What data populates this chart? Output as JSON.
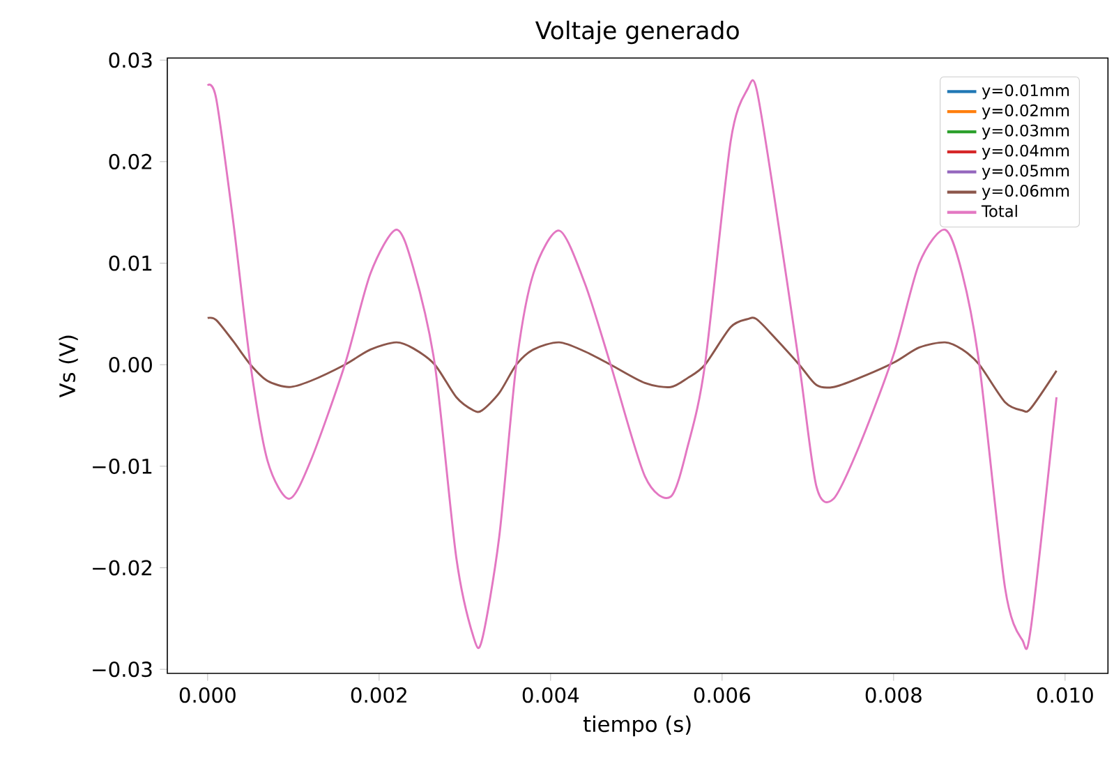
{
  "chart_data": {
    "type": "line",
    "title": "Voltaje generado",
    "xlabel": "tiempo (s)",
    "ylabel": "Vs (V)",
    "x": [
      0,
      0.0001,
      0.0003,
      0.0005,
      0.0007,
      0.00095,
      0.0012,
      0.0016,
      0.0019,
      0.0022,
      0.0024,
      0.00265,
      0.0029,
      0.0031,
      0.0032,
      0.0034,
      0.0036,
      0.0038,
      0.0041,
      0.0044,
      0.0047,
      0.0051,
      0.0054,
      0.0056,
      0.0058,
      0.0061,
      0.0063,
      0.0064,
      0.0066,
      0.0069,
      0.0071,
      0.0073,
      0.0076,
      0.008,
      0.0083,
      0.0086,
      0.0088,
      0.009,
      0.0093,
      0.0095,
      0.0096,
      0.0099
    ],
    "series": [
      {
        "name": "y=0.01mm",
        "color": "#1f77b4",
        "values": [
          null,
          null,
          null,
          null,
          null,
          null,
          null,
          null,
          null,
          null,
          null,
          null,
          null,
          null,
          null,
          null,
          null,
          null,
          null,
          null,
          null,
          null,
          null,
          null,
          null,
          null,
          null,
          null,
          null,
          null,
          null,
          null,
          null,
          null,
          null,
          null,
          null,
          null,
          null,
          null,
          null,
          null
        ]
      },
      {
        "name": "y=0.02mm",
        "color": "#ff7f0e",
        "values": [
          null,
          null,
          null,
          null,
          null,
          null,
          null,
          null,
          null,
          null,
          null,
          null,
          null,
          null,
          null,
          null,
          null,
          null,
          null,
          null,
          null,
          null,
          null,
          null,
          null,
          null,
          null,
          null,
          null,
          null,
          null,
          null,
          null,
          null,
          null,
          null,
          null,
          null,
          null,
          null,
          null,
          null
        ]
      },
      {
        "name": "y=0.03mm",
        "color": "#2ca02c",
        "values": [
          null,
          null,
          null,
          null,
          null,
          null,
          null,
          null,
          null,
          null,
          null,
          null,
          null,
          null,
          null,
          null,
          null,
          null,
          null,
          null,
          null,
          null,
          null,
          null,
          null,
          null,
          null,
          null,
          null,
          null,
          null,
          null,
          null,
          null,
          null,
          null,
          null,
          null,
          null,
          null,
          null,
          null
        ]
      },
      {
        "name": "y=0.04mm",
        "color": "#d62728",
        "values": [
          null,
          null,
          null,
          null,
          null,
          null,
          null,
          null,
          null,
          null,
          null,
          null,
          null,
          null,
          null,
          null,
          null,
          null,
          null,
          null,
          null,
          null,
          null,
          null,
          null,
          null,
          null,
          null,
          null,
          null,
          null,
          null,
          null,
          null,
          null,
          null,
          null,
          null,
          null,
          null,
          null,
          null
        ]
      },
      {
        "name": "y=0.05mm",
        "color": "#9467bd",
        "values": [
          null,
          null,
          null,
          null,
          null,
          null,
          null,
          null,
          null,
          null,
          null,
          null,
          null,
          null,
          null,
          null,
          null,
          null,
          null,
          null,
          null,
          null,
          null,
          null,
          null,
          null,
          null,
          null,
          null,
          null,
          null,
          null,
          null,
          null,
          null,
          null,
          null,
          null,
          null,
          null,
          null,
          null
        ]
      },
      {
        "name": "y=0.06mm",
        "color": "#8c564b",
        "values": [
          0.0046,
          0.0044,
          0.0023,
          0,
          -0.0016,
          -0.0022,
          -0.0016,
          0,
          0.0015,
          0.0022,
          0.0016,
          0,
          -0.0032,
          -0.0045,
          -0.0045,
          -0.0028,
          0,
          0.0015,
          0.0022,
          0.0013,
          0,
          -0.0018,
          -0.0022,
          -0.0013,
          0,
          0.0037,
          0.0045,
          0.0045,
          0.0028,
          0,
          -0.002,
          -0.0022,
          -0.0013,
          0.0002,
          0.0017,
          0.0022,
          0.0015,
          0,
          -0.0037,
          -0.0045,
          -0.0043,
          -0.0006
        ]
      },
      {
        "name": "Total",
        "color": "#e377c2",
        "values": [
          0.0275,
          0.0262,
          0.014,
          0,
          -0.0095,
          -0.0132,
          -0.0095,
          0,
          0.009,
          0.0133,
          0.0095,
          0,
          -0.019,
          -0.0268,
          -0.0271,
          -0.017,
          0,
          0.009,
          0.0132,
          0.008,
          0,
          -0.011,
          -0.013,
          -0.008,
          0,
          0.022,
          0.0272,
          0.0272,
          0.017,
          0,
          -0.012,
          -0.0132,
          -0.008,
          0.001,
          0.01,
          0.0133,
          0.009,
          0,
          -0.022,
          -0.0271,
          -0.026,
          -0.0032
        ]
      }
    ],
    "xlim": [
      -0.00047,
      0.0105
    ],
    "ylim": [
      -0.0304,
      0.0302
    ],
    "xticks": [
      {
        "value": 0,
        "label": "0.000"
      },
      {
        "value": 0.002,
        "label": "0.002"
      },
      {
        "value": 0.004,
        "label": "0.004"
      },
      {
        "value": 0.006,
        "label": "0.006"
      },
      {
        "value": 0.008,
        "label": "0.008"
      },
      {
        "value": 0.01,
        "label": "0.010"
      }
    ],
    "yticks": [
      {
        "value": -0.03,
        "label": "−0.03"
      },
      {
        "value": -0.02,
        "label": "−0.02"
      },
      {
        "value": -0.01,
        "label": "−0.01"
      },
      {
        "value": 0,
        "label": "0.00"
      },
      {
        "value": 0.01,
        "label": "0.01"
      },
      {
        "value": 0.02,
        "label": "0.02"
      },
      {
        "value": 0.03,
        "label": "0.03"
      }
    ],
    "grid": false,
    "legend": "top right",
    "marker": "none",
    "line_style": "solid"
  }
}
